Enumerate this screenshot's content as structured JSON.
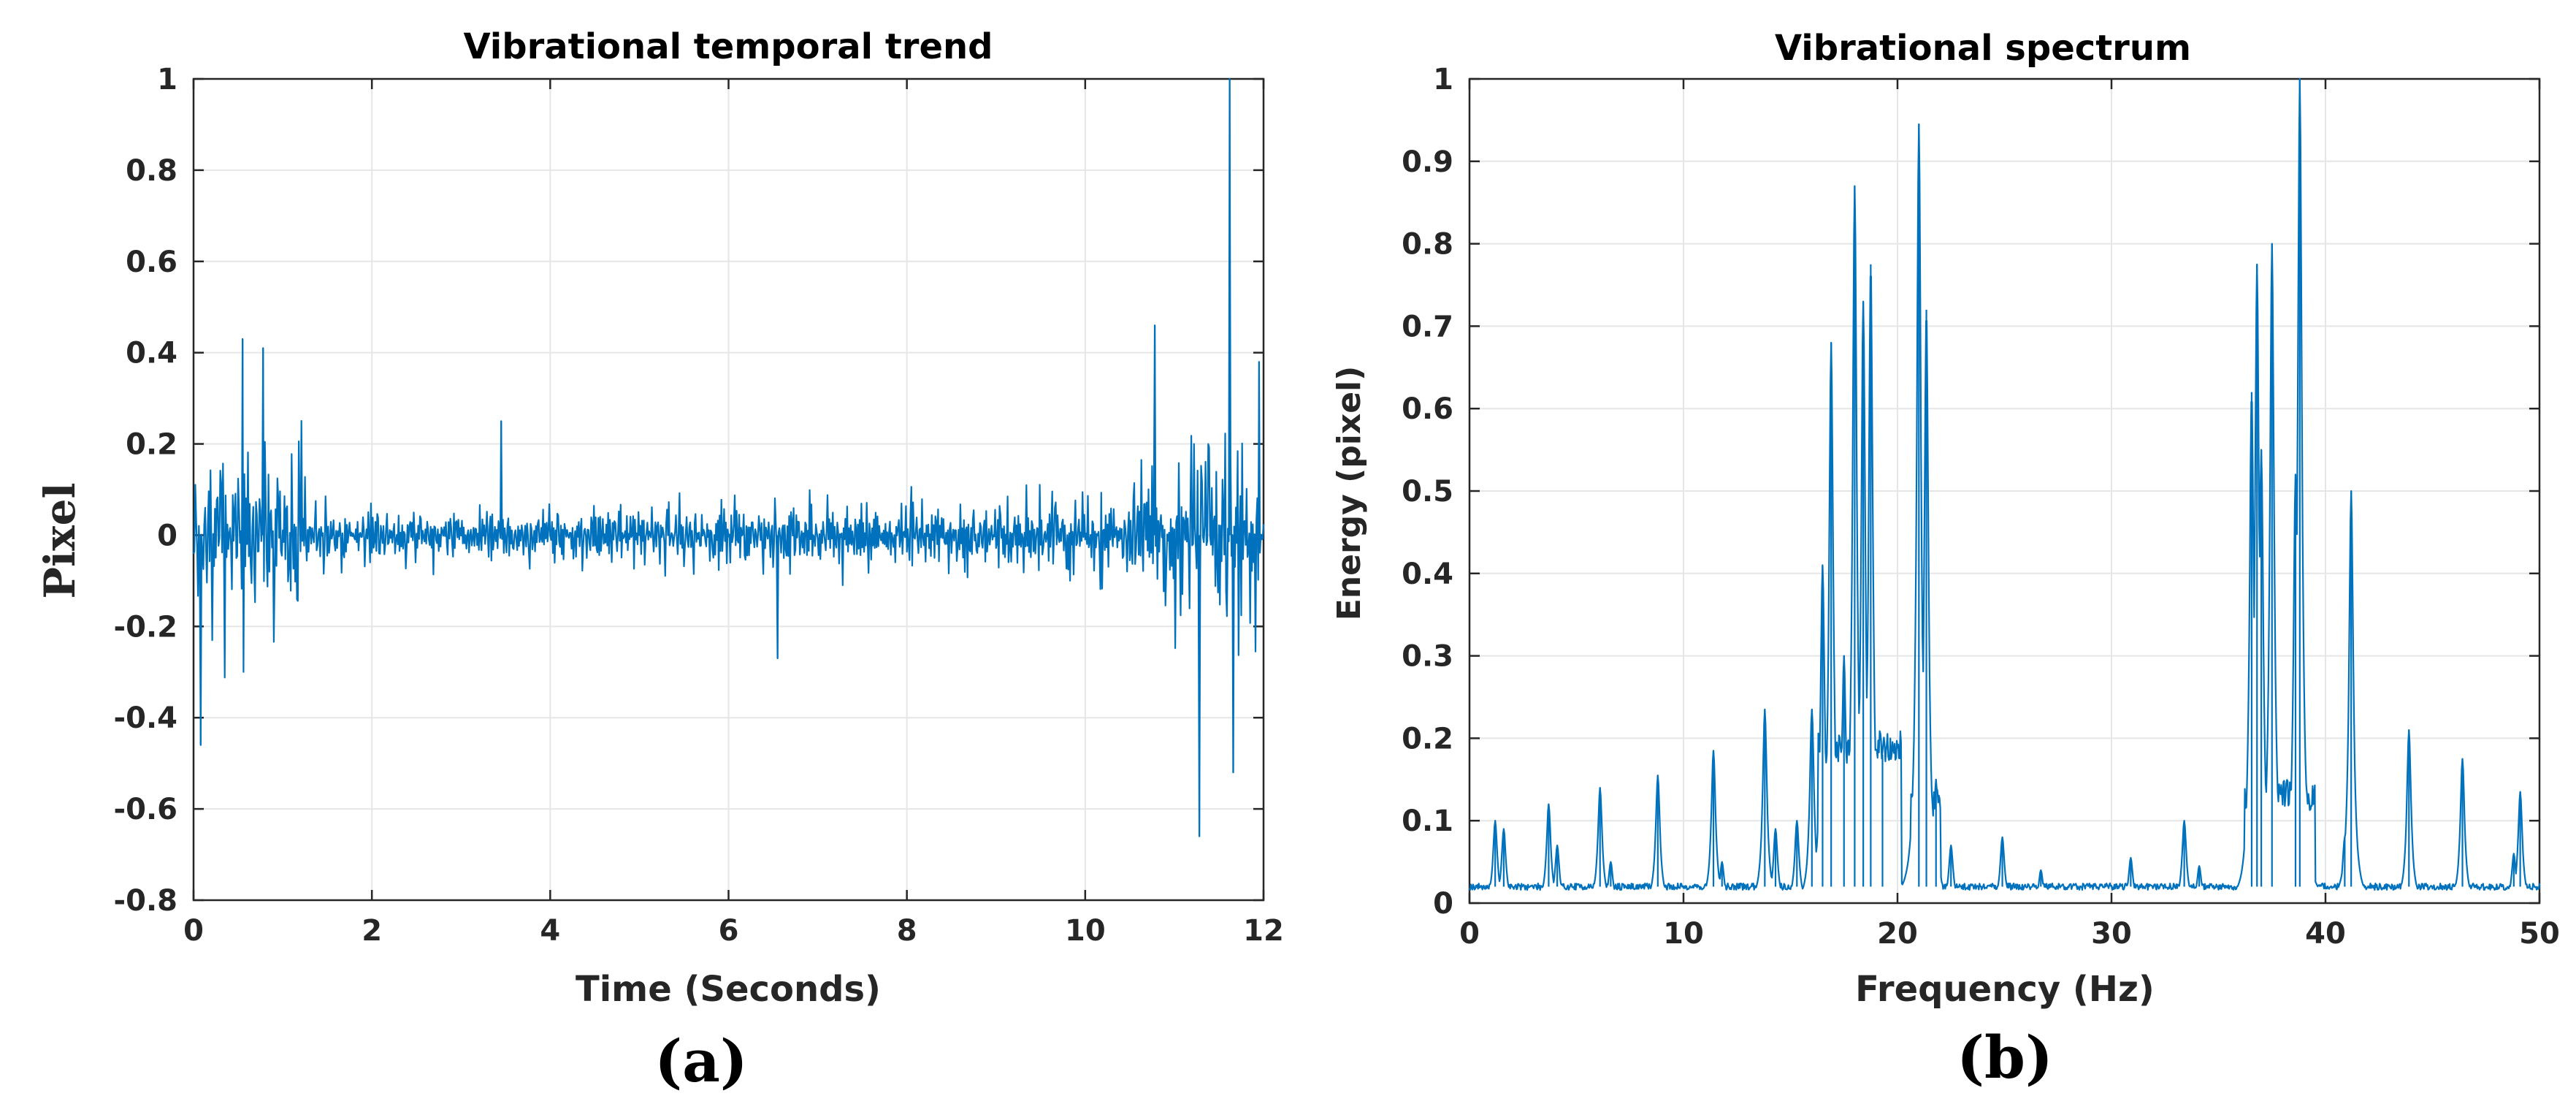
{
  "figure": {
    "label_a": "(a)",
    "label_b": "(b)"
  },
  "chart_data": [
    {
      "id": "temporal",
      "type": "line",
      "title": "Vibrational temporal trend",
      "xlabel": "Time (Seconds)",
      "ylabel": "Pixel",
      "xlim": [
        0,
        12
      ],
      "ylim": [
        -0.8,
        1
      ],
      "xticks": [
        0,
        2,
        4,
        6,
        8,
        10,
        12
      ],
      "yticks": [
        -0.8,
        -0.6,
        -0.4,
        -0.2,
        0,
        0.2,
        0.4,
        0.6,
        0.8,
        1
      ],
      "ytick_labels": [
        "-0.8",
        "-0.6",
        "-0.4",
        "-0.2",
        "0",
        "0.2",
        "0.4",
        "0.6",
        "0.8",
        "1"
      ],
      "grid": true,
      "line_color": "#0072BD",
      "envelope": [
        {
          "t": 0.0,
          "amp": 0.4
        },
        {
          "t": 1.2,
          "amp": 0.38
        },
        {
          "t": 1.3,
          "amp": 0.14
        },
        {
          "t": 3.0,
          "amp": 0.11
        },
        {
          "t": 6.0,
          "amp": 0.15
        },
        {
          "t": 9.0,
          "amp": 0.16
        },
        {
          "t": 10.4,
          "amp": 0.2
        },
        {
          "t": 10.7,
          "amp": 0.34
        },
        {
          "t": 12.0,
          "amp": 0.36
        }
      ],
      "peaks": [
        {
          "t": 0.08,
          "y": -0.46
        },
        {
          "t": 0.55,
          "y": 0.43
        },
        {
          "t": 0.78,
          "y": 0.41
        },
        {
          "t": 3.45,
          "y": 0.25
        },
        {
          "t": 6.55,
          "y": -0.27
        },
        {
          "t": 10.78,
          "y": 0.46
        },
        {
          "t": 11.28,
          "y": -0.66
        },
        {
          "t": 11.62,
          "y": 1.0
        },
        {
          "t": 11.66,
          "y": -0.52
        },
        {
          "t": 11.95,
          "y": 0.38
        }
      ]
    },
    {
      "id": "spectrum",
      "type": "line",
      "title": "Vibrational spectrum",
      "xlabel": "Frequency (Hz)",
      "ylabel": "Energy (pixel)",
      "xlim": [
        0,
        50
      ],
      "ylim": [
        0,
        1
      ],
      "xticks": [
        0,
        10,
        20,
        30,
        40,
        50
      ],
      "yticks": [
        0,
        0.1,
        0.2,
        0.3,
        0.4,
        0.5,
        0.6,
        0.7,
        0.8,
        0.9,
        1
      ],
      "ytick_labels": [
        "0",
        "0.1",
        "0.2",
        "0.3",
        "0.4",
        "0.5",
        "0.6",
        "0.7",
        "0.8",
        "0.9",
        "1"
      ],
      "grid": true,
      "line_color": "#0072BD",
      "baseline": 0.02,
      "bands": [
        {
          "from": 16.3,
          "to": 20.2,
          "level": 0.19
        },
        {
          "from": 20.6,
          "to": 22.0,
          "level": 0.12
        },
        {
          "from": 36.2,
          "to": 39.5,
          "level": 0.13
        }
      ],
      "peaks": [
        {
          "f": 1.2,
          "y": 0.1
        },
        {
          "f": 1.6,
          "y": 0.09
        },
        {
          "f": 3.7,
          "y": 0.12
        },
        {
          "f": 4.1,
          "y": 0.07
        },
        {
          "f": 6.1,
          "y": 0.14
        },
        {
          "f": 6.6,
          "y": 0.05
        },
        {
          "f": 8.8,
          "y": 0.155
        },
        {
          "f": 11.4,
          "y": 0.185
        },
        {
          "f": 11.8,
          "y": 0.05
        },
        {
          "f": 13.8,
          "y": 0.235
        },
        {
          "f": 14.3,
          "y": 0.09
        },
        {
          "f": 15.3,
          "y": 0.1
        },
        {
          "f": 16.0,
          "y": 0.235
        },
        {
          "f": 16.5,
          "y": 0.41
        },
        {
          "f": 16.9,
          "y": 0.68
        },
        {
          "f": 17.5,
          "y": 0.3
        },
        {
          "f": 18.0,
          "y": 0.87
        },
        {
          "f": 18.4,
          "y": 0.73
        },
        {
          "f": 18.75,
          "y": 0.775
        },
        {
          "f": 19.3,
          "y": 0.18
        },
        {
          "f": 21.0,
          "y": 0.945
        },
        {
          "f": 21.35,
          "y": 0.72
        },
        {
          "f": 21.8,
          "y": 0.15
        },
        {
          "f": 22.5,
          "y": 0.07
        },
        {
          "f": 24.9,
          "y": 0.08
        },
        {
          "f": 26.7,
          "y": 0.04
        },
        {
          "f": 30.9,
          "y": 0.055
        },
        {
          "f": 33.4,
          "y": 0.1
        },
        {
          "f": 34.1,
          "y": 0.045
        },
        {
          "f": 36.55,
          "y": 0.62
        },
        {
          "f": 36.8,
          "y": 0.775
        },
        {
          "f": 37.0,
          "y": 0.55
        },
        {
          "f": 37.5,
          "y": 0.8
        },
        {
          "f": 38.6,
          "y": 0.52
        },
        {
          "f": 38.8,
          "y": 1.0
        },
        {
          "f": 40.9,
          "y": 0.08
        },
        {
          "f": 41.2,
          "y": 0.5
        },
        {
          "f": 43.9,
          "y": 0.21
        },
        {
          "f": 46.4,
          "y": 0.175
        },
        {
          "f": 48.8,
          "y": 0.06
        },
        {
          "f": 49.1,
          "y": 0.135
        }
      ]
    }
  ]
}
